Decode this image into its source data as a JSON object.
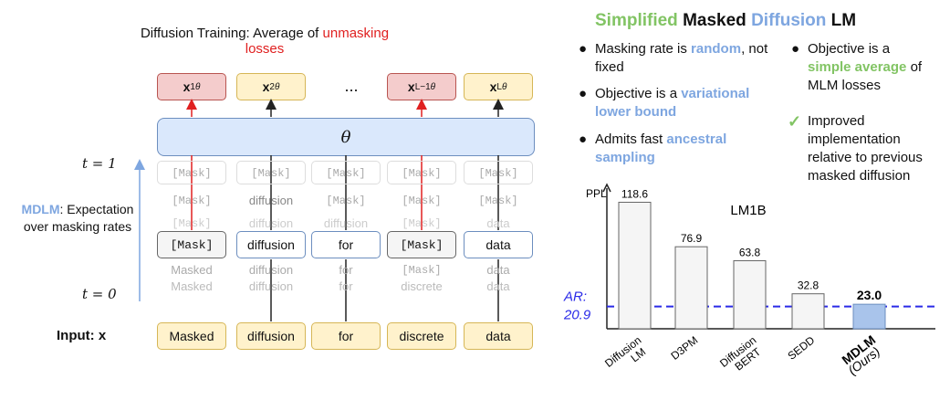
{
  "left": {
    "title_prefix": "Diffusion Training: Average of ",
    "title_highlight": "unmasking losses",
    "outputs": [
      "x",
      "x",
      "...",
      "x",
      "x"
    ],
    "output_sup": [
      "1",
      "2",
      "",
      "L−1",
      "L"
    ],
    "output_sub": "θ",
    "theta": "θ",
    "t1": "t = 1",
    "t0": "t = 0",
    "mdlm_label": "MDLM",
    "mdlm_text": ": Expectation over masking rates",
    "ghost_top": [
      "[Mask]",
      "[Mask]",
      "[Mask]",
      "[Mask]",
      "[Mask]"
    ],
    "ghost_row2": [
      "[Mask]",
      "diffusion",
      "[Mask]",
      "[Mask]",
      "[Mask]"
    ],
    "ghost_row3": [
      "[Mask]",
      "diffusion",
      "diffusion",
      "[Mask]",
      "data"
    ],
    "tokens": [
      "[Mask]",
      "diffusion",
      "for",
      "[Mask]",
      "data"
    ],
    "ghost_below1": [
      "Masked",
      "diffusion",
      "for",
      "[Mask]",
      "data"
    ],
    "ghost_below2": [
      "Masked",
      "diffusion",
      "for",
      "discrete",
      "data"
    ],
    "input_label": "Input: x",
    "inputs": [
      "Masked",
      "diffusion",
      "for",
      "discrete",
      "data"
    ]
  },
  "right": {
    "title_w1": "Simplified",
    "title_w2": " Masked ",
    "title_w3": "Diffusion",
    "title_w4": " LM",
    "b1_a": "Masking rate is ",
    "b1_b": "random",
    "b1_c": ", not fixed",
    "b2_a": "Objective is a ",
    "b2_b": "variational lower bound",
    "b3_a": "Admits fast ",
    "b3_b": "ancestral sampling",
    "b4_a": "Objective is a ",
    "b4_b": "simple average",
    "b4_c": " of MLM losses",
    "check": "✓",
    "b5": "Improved implementation relative to previous masked diffusion"
  },
  "chart_data": {
    "type": "bar",
    "title": "LM1B",
    "ylabel": "PPL",
    "categories": [
      "Diffusion LM",
      "D3PM",
      "Diffusion BERT",
      "SEDD",
      "MDLM (Ours)"
    ],
    "values": [
      118.6,
      76.9,
      63.8,
      32.8,
      23.0
    ],
    "value_labels": [
      "118.6",
      "76.9",
      "63.8",
      "32.8",
      "23.0"
    ],
    "reference_line": {
      "label": "AR: 20.9",
      "value": 20.9
    },
    "colors": {
      "bar": "#f5f5f5",
      "highlight": "#a9c4eb",
      "ref": "#2a2ae8"
    },
    "ylim": [
      0,
      125
    ]
  },
  "colors": {
    "red": "#e02020",
    "blue": "#7ea6e0",
    "green": "#82c464"
  }
}
